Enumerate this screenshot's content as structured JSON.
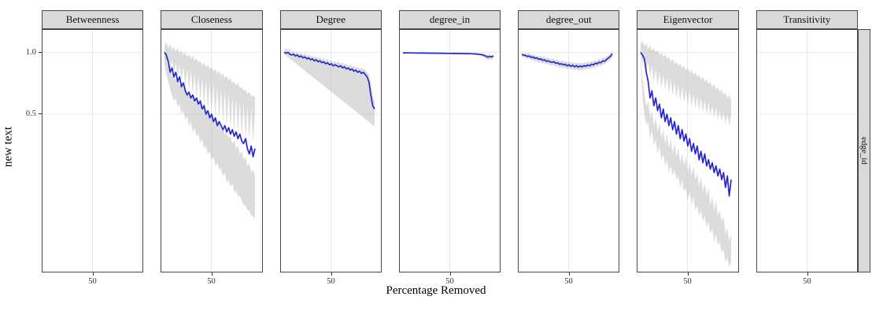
{
  "chart_data": {
    "type": "line",
    "layout": "faceted-grid",
    "facet_row_label": "edge_id",
    "xlabel": "Percentage Removed",
    "ylabel": "new text",
    "x_tick_label": "50",
    "x_tick_value": 50,
    "x_range": [
      0,
      100
    ],
    "y_ticks": [
      1.0,
      0.5
    ],
    "y_tick_labels": [
      "1.0",
      "0.5"
    ],
    "y_scale": "log",
    "grid": "major-only",
    "legend": "none",
    "x_grid": {
      "start": 0,
      "step": 2,
      "count": 49
    },
    "colors": {
      "line_blue": "#2727CF",
      "ribbon_gray": "#B9B9B9",
      "strip_fill": "#D9D9D9",
      "panel_border": "#4a4a4a",
      "gridline": "#E9E9E9"
    },
    "panels": [
      {
        "label": "Betweenness",
        "line": null,
        "ribbons": []
      },
      {
        "label": "Closeness",
        "line": [
          1.0,
          0.97,
          0.9,
          0.8,
          0.84,
          0.76,
          0.8,
          0.72,
          0.76,
          0.68,
          0.71,
          0.65,
          0.62,
          0.64,
          0.6,
          0.62,
          0.58,
          0.6,
          0.56,
          0.58,
          0.53,
          0.55,
          0.5,
          0.52,
          0.48,
          0.5,
          0.46,
          0.48,
          0.44,
          0.46,
          0.44,
          0.42,
          0.44,
          0.41,
          0.43,
          0.4,
          0.42,
          0.39,
          0.41,
          0.38,
          0.4,
          0.37,
          0.36,
          0.38,
          0.34,
          0.32,
          0.35,
          0.31,
          0.34
        ],
        "ribbons": [
          {
            "upper": [
              1.08,
              1.12,
              1.05,
              1.1,
              1.03,
              1.07,
              1.01,
              1.05,
              0.99,
              1.02,
              0.97,
              1.0,
              0.95,
              0.98,
              0.93,
              0.96,
              0.91,
              0.94,
              0.89,
              0.91,
              0.87,
              0.89,
              0.85,
              0.87,
              0.83,
              0.85,
              0.81,
              0.83,
              0.79,
              0.81,
              0.77,
              0.79,
              0.75,
              0.77,
              0.73,
              0.75,
              0.71,
              0.72,
              0.69,
              0.71,
              0.67,
              0.68,
              0.65,
              0.66,
              0.63,
              0.64,
              0.61,
              0.62,
              0.6
            ],
            "lower": [
              0.95,
              0.9,
              0.93,
              0.85,
              0.91,
              0.8,
              0.89,
              0.76,
              0.87,
              0.72,
              0.85,
              0.68,
              0.83,
              0.66,
              0.81,
              0.63,
              0.79,
              0.6,
              0.77,
              0.58,
              0.75,
              0.55,
              0.73,
              0.53,
              0.71,
              0.51,
              0.7,
              0.49,
              0.68,
              0.47,
              0.66,
              0.46,
              0.64,
              0.44,
              0.63,
              0.43,
              0.61,
              0.41,
              0.6,
              0.4,
              0.58,
              0.39,
              0.57,
              0.38,
              0.55,
              0.37,
              0.54,
              0.36,
              0.53
            ]
          },
          {
            "upper": [
              1.0,
              0.92,
              0.85,
              0.88,
              0.78,
              0.8,
              0.73,
              0.76,
              0.69,
              0.72,
              0.66,
              0.69,
              0.63,
              0.65,
              0.6,
              0.62,
              0.57,
              0.59,
              0.55,
              0.57,
              0.52,
              0.54,
              0.5,
              0.52,
              0.48,
              0.49,
              0.46,
              0.47,
              0.44,
              0.45,
              0.42,
              0.43,
              0.4,
              0.41,
              0.38,
              0.39,
              0.36,
              0.37,
              0.34,
              0.35,
              0.32,
              0.33,
              0.3,
              0.31,
              0.28,
              0.29,
              0.26,
              0.27,
              0.25
            ],
            "lower": [
              0.88,
              0.78,
              0.72,
              0.66,
              0.62,
              0.58,
              0.6,
              0.54,
              0.56,
              0.5,
              0.52,
              0.47,
              0.49,
              0.44,
              0.46,
              0.41,
              0.43,
              0.39,
              0.4,
              0.36,
              0.38,
              0.34,
              0.35,
              0.32,
              0.33,
              0.3,
              0.31,
              0.28,
              0.29,
              0.27,
              0.27,
              0.25,
              0.26,
              0.23,
              0.24,
              0.22,
              0.23,
              0.21,
              0.21,
              0.2,
              0.2,
              0.19,
              0.18,
              0.18,
              0.17,
              0.17,
              0.16,
              0.16,
              0.155
            ]
          }
        ]
      },
      {
        "label": "Degree",
        "line": [
          1.0,
          0.99,
          1.0,
          0.98,
          0.97,
          0.98,
          0.96,
          0.97,
          0.95,
          0.96,
          0.94,
          0.95,
          0.93,
          0.94,
          0.92,
          0.93,
          0.91,
          0.92,
          0.9,
          0.91,
          0.89,
          0.9,
          0.88,
          0.89,
          0.87,
          0.88,
          0.86,
          0.87,
          0.86,
          0.85,
          0.86,
          0.84,
          0.85,
          0.83,
          0.84,
          0.82,
          0.83,
          0.81,
          0.82,
          0.8,
          0.81,
          0.79,
          0.8,
          0.78,
          0.76,
          0.72,
          0.62,
          0.55,
          0.53
        ],
        "ribbons": [
          {
            "upper": [
              1.03,
              1.05,
              1.02,
              1.04,
              1.0,
              1.02,
              0.99,
              1.01,
              0.98,
              1.0,
              0.97,
              0.99,
              0.96,
              0.98,
              0.95,
              0.97,
              0.94,
              0.96,
              0.93,
              0.95,
              0.92,
              0.94,
              0.91,
              0.93,
              0.9,
              0.92,
              0.89,
              0.91,
              0.89,
              0.9,
              0.88,
              0.89,
              0.87,
              0.88,
              0.86,
              0.87,
              0.85,
              0.86,
              0.84,
              0.85,
              0.83,
              0.84,
              0.83,
              0.82,
              0.8,
              0.78,
              0.7,
              0.62,
              0.57
            ],
            "lower": [
              0.98,
              0.964,
              0.948,
              0.932,
              0.916,
              0.901,
              0.886,
              0.871,
              0.856,
              0.842,
              0.828,
              0.814,
              0.8,
              0.787,
              0.774,
              0.761,
              0.748,
              0.736,
              0.723,
              0.711,
              0.7,
              0.688,
              0.676,
              0.665,
              0.654,
              0.643,
              0.632,
              0.621,
              0.611,
              0.601,
              0.591,
              0.581,
              0.571,
              0.562,
              0.552,
              0.543,
              0.534,
              0.525,
              0.516,
              0.508,
              0.499,
              0.491,
              0.483,
              0.474,
              0.466,
              0.459,
              0.451,
              0.443,
              0.436
            ]
          }
        ]
      },
      {
        "label": "degree_in",
        "line": [
          0.995,
          0.995,
          0.994,
          0.994,
          0.994,
          0.993,
          0.993,
          0.993,
          0.993,
          0.992,
          0.992,
          0.992,
          0.992,
          0.991,
          0.991,
          0.991,
          0.991,
          0.99,
          0.99,
          0.99,
          0.99,
          0.99,
          0.989,
          0.989,
          0.989,
          0.989,
          0.988,
          0.988,
          0.988,
          0.988,
          0.987,
          0.987,
          0.987,
          0.986,
          0.986,
          0.985,
          0.985,
          0.984,
          0.983,
          0.982,
          0.98,
          0.977,
          0.973,
          0.968,
          0.958,
          0.948,
          0.956,
          0.95,
          0.962
        ],
        "ribbons": [
          {
            "upper": [
              0.999,
              0.999,
              0.998,
              0.998,
              0.998,
              0.997,
              0.997,
              0.997,
              0.997,
              0.996,
              0.996,
              0.996,
              0.996,
              0.995,
              0.995,
              0.995,
              0.995,
              0.994,
              0.994,
              0.994,
              0.994,
              0.994,
              0.993,
              0.993,
              0.993,
              0.993,
              0.992,
              0.992,
              0.992,
              0.992,
              0.991,
              0.991,
              0.991,
              0.99,
              0.99,
              0.99,
              0.99,
              0.989,
              0.989,
              0.989,
              0.988,
              0.987,
              0.985,
              0.983,
              0.978,
              0.972,
              0.976,
              0.972,
              0.98
            ],
            "lower": [
              0.991,
              0.991,
              0.99,
              0.99,
              0.99,
              0.989,
              0.989,
              0.989,
              0.989,
              0.988,
              0.988,
              0.988,
              0.988,
              0.987,
              0.987,
              0.987,
              0.987,
              0.986,
              0.986,
              0.986,
              0.986,
              0.986,
              0.985,
              0.985,
              0.985,
              0.985,
              0.984,
              0.984,
              0.984,
              0.984,
              0.983,
              0.983,
              0.982,
              0.981,
              0.98,
              0.979,
              0.978,
              0.976,
              0.974,
              0.971,
              0.967,
              0.961,
              0.953,
              0.943,
              0.928,
              0.915,
              0.928,
              0.92,
              0.94
            ]
          }
        ]
      },
      {
        "label": "degree_out",
        "line": [
          0.975,
          0.97,
          0.965,
          0.955,
          0.96,
          0.945,
          0.95,
          0.935,
          0.94,
          0.925,
          0.93,
          0.915,
          0.92,
          0.905,
          0.91,
          0.9,
          0.895,
          0.9,
          0.885,
          0.89,
          0.875,
          0.88,
          0.87,
          0.875,
          0.86,
          0.87,
          0.855,
          0.865,
          0.85,
          0.862,
          0.848,
          0.858,
          0.85,
          0.862,
          0.855,
          0.868,
          0.86,
          0.875,
          0.87,
          0.885,
          0.88,
          0.895,
          0.89,
          0.91,
          0.905,
          0.925,
          0.94,
          0.955,
          0.985
        ],
        "ribbons": [
          {
            "upper": [
              1.0,
              0.995,
              0.99,
              0.985,
              0.99,
              0.975,
              0.98,
              0.965,
              0.97,
              0.955,
              0.962,
              0.948,
              0.952,
              0.938,
              0.942,
              0.932,
              0.928,
              0.933,
              0.918,
              0.922,
              0.908,
              0.913,
              0.903,
              0.908,
              0.893,
              0.903,
              0.888,
              0.898,
              0.883,
              0.895,
              0.881,
              0.891,
              0.883,
              0.895,
              0.888,
              0.901,
              0.893,
              0.908,
              0.903,
              0.918,
              0.913,
              0.928,
              0.923,
              0.943,
              0.938,
              0.958,
              0.973,
              0.988,
              1.015
            ],
            "lower": [
              0.95,
              0.945,
              0.94,
              0.93,
              0.932,
              0.915,
              0.918,
              0.905,
              0.908,
              0.895,
              0.898,
              0.882,
              0.888,
              0.872,
              0.878,
              0.868,
              0.862,
              0.868,
              0.852,
              0.858,
              0.842,
              0.848,
              0.838,
              0.842,
              0.828,
              0.838,
              0.822,
              0.832,
              0.818,
              0.829,
              0.815,
              0.825,
              0.817,
              0.829,
              0.822,
              0.835,
              0.827,
              0.842,
              0.837,
              0.852,
              0.847,
              0.862,
              0.857,
              0.877,
              0.872,
              0.892,
              0.907,
              0.922,
              0.955
            ]
          }
        ]
      },
      {
        "label": "Eigenvector",
        "line": [
          1.0,
          0.97,
          0.93,
          0.8,
          0.72,
          0.6,
          0.65,
          0.55,
          0.6,
          0.52,
          0.56,
          0.48,
          0.53,
          0.46,
          0.5,
          0.44,
          0.48,
          0.42,
          0.46,
          0.4,
          0.44,
          0.38,
          0.42,
          0.37,
          0.4,
          0.35,
          0.38,
          0.33,
          0.36,
          0.32,
          0.35,
          0.3,
          0.33,
          0.29,
          0.32,
          0.28,
          0.3,
          0.27,
          0.29,
          0.26,
          0.28,
          0.25,
          0.27,
          0.24,
          0.26,
          0.22,
          0.25,
          0.2,
          0.24
        ],
        "ribbons": [
          {
            "upper": [
              1.1,
              1.14,
              1.07,
              1.11,
              1.04,
              1.08,
              1.02,
              1.05,
              1.0,
              1.03,
              0.97,
              1.0,
              0.95,
              0.98,
              0.93,
              0.95,
              0.9,
              0.93,
              0.88,
              0.9,
              0.86,
              0.88,
              0.84,
              0.86,
              0.82,
              0.84,
              0.8,
              0.82,
              0.78,
              0.8,
              0.76,
              0.78,
              0.74,
              0.76,
              0.72,
              0.74,
              0.7,
              0.72,
              0.68,
              0.7,
              0.66,
              0.68,
              0.64,
              0.66,
              0.62,
              0.64,
              0.6,
              0.62,
              0.58
            ],
            "lower": [
              0.98,
              0.88,
              0.95,
              0.82,
              0.9,
              0.76,
              0.86,
              0.72,
              0.83,
              0.69,
              0.8,
              0.67,
              0.78,
              0.65,
              0.76,
              0.63,
              0.74,
              0.61,
              0.72,
              0.6,
              0.7,
              0.58,
              0.68,
              0.57,
              0.66,
              0.55,
              0.65,
              0.54,
              0.63,
              0.53,
              0.61,
              0.52,
              0.6,
              0.51,
              0.58,
              0.5,
              0.57,
              0.49,
              0.55,
              0.48,
              0.54,
              0.47,
              0.52,
              0.46,
              0.51,
              0.45,
              0.5,
              0.44,
              0.49
            ]
          },
          {
            "upper": [
              0.98,
              0.75,
              0.62,
              0.55,
              0.58,
              0.48,
              0.52,
              0.44,
              0.48,
              0.41,
              0.45,
              0.38,
              0.42,
              0.36,
              0.4,
              0.34,
              0.38,
              0.32,
              0.36,
              0.31,
              0.34,
              0.29,
              0.32,
              0.28,
              0.31,
              0.26,
              0.29,
              0.25,
              0.28,
              0.24,
              0.26,
              0.22,
              0.25,
              0.21,
              0.23,
              0.2,
              0.22,
              0.18,
              0.2,
              0.17,
              0.19,
              0.16,
              0.17,
              0.15,
              0.16,
              0.13,
              0.14,
              0.12,
              0.13
            ],
            "lower": [
              0.9,
              0.6,
              0.5,
              0.44,
              0.46,
              0.38,
              0.42,
              0.35,
              0.38,
              0.32,
              0.35,
              0.3,
              0.32,
              0.28,
              0.3,
              0.26,
              0.28,
              0.25,
              0.27,
              0.24,
              0.25,
              0.22,
              0.24,
              0.21,
              0.22,
              0.19,
              0.21,
              0.18,
              0.2,
              0.17,
              0.18,
              0.16,
              0.17,
              0.15,
              0.16,
              0.14,
              0.15,
              0.13,
              0.14,
              0.12,
              0.13,
              0.115,
              0.12,
              0.105,
              0.11,
              0.095,
              0.1,
              0.09,
              0.095
            ]
          }
        ]
      },
      {
        "label": "Transitivity",
        "line": null,
        "ribbons": []
      }
    ]
  }
}
